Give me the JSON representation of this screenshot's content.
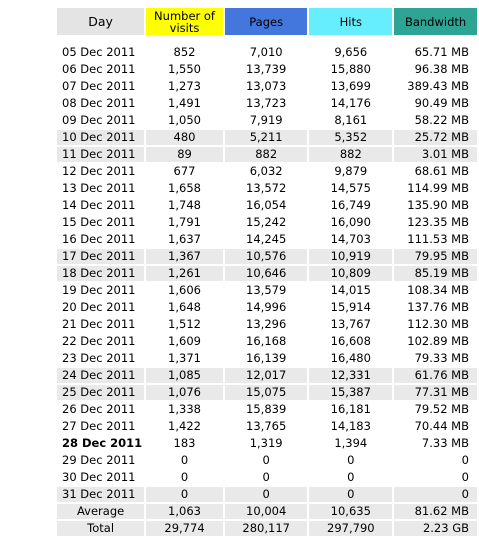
{
  "headers": {
    "day": "Day",
    "visits": "Number of visits",
    "pages": "Pages",
    "hits": "Hits",
    "bandwidth": "Bandwidth"
  },
  "colors": {
    "visits": "#ffff00",
    "pages": "#4477dd",
    "hits": "#66eeff",
    "bandwidth": "#2ea495",
    "day": "#e4e4e4",
    "weekend_row": "#e9e9e9"
  },
  "rows": [
    {
      "day": "05 Dec 2011",
      "visits": "852",
      "pages": "7,010",
      "hits": "9,656",
      "bandwidth": "65.71 MB",
      "weekend": false
    },
    {
      "day": "06 Dec 2011",
      "visits": "1,550",
      "pages": "13,739",
      "hits": "15,880",
      "bandwidth": "96.38 MB",
      "weekend": false
    },
    {
      "day": "07 Dec 2011",
      "visits": "1,273",
      "pages": "13,073",
      "hits": "13,699",
      "bandwidth": "389.43 MB",
      "weekend": false
    },
    {
      "day": "08 Dec 2011",
      "visits": "1,491",
      "pages": "13,723",
      "hits": "14,176",
      "bandwidth": "90.49 MB",
      "weekend": false
    },
    {
      "day": "09 Dec 2011",
      "visits": "1,050",
      "pages": "7,919",
      "hits": "8,161",
      "bandwidth": "58.22 MB",
      "weekend": false
    },
    {
      "day": "10 Dec 2011",
      "visits": "480",
      "pages": "5,211",
      "hits": "5,352",
      "bandwidth": "25.72 MB",
      "weekend": true
    },
    {
      "day": "11 Dec 2011",
      "visits": "89",
      "pages": "882",
      "hits": "882",
      "bandwidth": "3.01 MB",
      "weekend": true
    },
    {
      "day": "12 Dec 2011",
      "visits": "677",
      "pages": "6,032",
      "hits": "9,879",
      "bandwidth": "68.61 MB",
      "weekend": false
    },
    {
      "day": "13 Dec 2011",
      "visits": "1,658",
      "pages": "13,572",
      "hits": "14,575",
      "bandwidth": "114.99 MB",
      "weekend": false
    },
    {
      "day": "14 Dec 2011",
      "visits": "1,748",
      "pages": "16,054",
      "hits": "16,749",
      "bandwidth": "135.90 MB",
      "weekend": false
    },
    {
      "day": "15 Dec 2011",
      "visits": "1,791",
      "pages": "15,242",
      "hits": "16,090",
      "bandwidth": "123.35 MB",
      "weekend": false
    },
    {
      "day": "16 Dec 2011",
      "visits": "1,637",
      "pages": "14,245",
      "hits": "14,703",
      "bandwidth": "111.53 MB",
      "weekend": false
    },
    {
      "day": "17 Dec 2011",
      "visits": "1,367",
      "pages": "10,576",
      "hits": "10,919",
      "bandwidth": "79.95 MB",
      "weekend": true
    },
    {
      "day": "18 Dec 2011",
      "visits": "1,261",
      "pages": "10,646",
      "hits": "10,809",
      "bandwidth": "85.19 MB",
      "weekend": true
    },
    {
      "day": "19 Dec 2011",
      "visits": "1,606",
      "pages": "13,579",
      "hits": "14,015",
      "bandwidth": "108.34 MB",
      "weekend": false
    },
    {
      "day": "20 Dec 2011",
      "visits": "1,648",
      "pages": "14,996",
      "hits": "15,914",
      "bandwidth": "137.76 MB",
      "weekend": false
    },
    {
      "day": "21 Dec 2011",
      "visits": "1,512",
      "pages": "13,296",
      "hits": "13,767",
      "bandwidth": "112.30 MB",
      "weekend": false
    },
    {
      "day": "22 Dec 2011",
      "visits": "1,609",
      "pages": "16,168",
      "hits": "16,608",
      "bandwidth": "102.89 MB",
      "weekend": false
    },
    {
      "day": "23 Dec 2011",
      "visits": "1,371",
      "pages": "16,139",
      "hits": "16,480",
      "bandwidth": "79.33 MB",
      "weekend": false
    },
    {
      "day": "24 Dec 2011",
      "visits": "1,085",
      "pages": "12,017",
      "hits": "12,331",
      "bandwidth": "61.76 MB",
      "weekend": true
    },
    {
      "day": "25 Dec 2011",
      "visits": "1,076",
      "pages": "15,075",
      "hits": "15,387",
      "bandwidth": "77.31 MB",
      "weekend": true
    },
    {
      "day": "26 Dec 2011",
      "visits": "1,338",
      "pages": "15,839",
      "hits": "16,181",
      "bandwidth": "79.52 MB",
      "weekend": false
    },
    {
      "day": "27 Dec 2011",
      "visits": "1,422",
      "pages": "13,765",
      "hits": "14,183",
      "bandwidth": "70.44 MB",
      "weekend": false
    },
    {
      "day": "28 Dec 2011",
      "visits": "183",
      "pages": "1,319",
      "hits": "1,394",
      "bandwidth": "7.33 MB",
      "weekend": false,
      "today": true
    },
    {
      "day": "29 Dec 2011",
      "visits": "0",
      "pages": "0",
      "hits": "0",
      "bandwidth": "0",
      "weekend": false
    },
    {
      "day": "30 Dec 2011",
      "visits": "0",
      "pages": "0",
      "hits": "0",
      "bandwidth": "0",
      "weekend": false
    },
    {
      "day": "31 Dec 2011",
      "visits": "0",
      "pages": "0",
      "hits": "0",
      "bandwidth": "0",
      "weekend": true
    }
  ],
  "average": {
    "label": "Average",
    "visits": "1,063",
    "pages": "10,004",
    "hits": "10,635",
    "bandwidth": "81.62 MB"
  },
  "total": {
    "label": "Total",
    "visits": "29,774",
    "pages": "280,117",
    "hits": "297,790",
    "bandwidth": "2.23 GB"
  }
}
